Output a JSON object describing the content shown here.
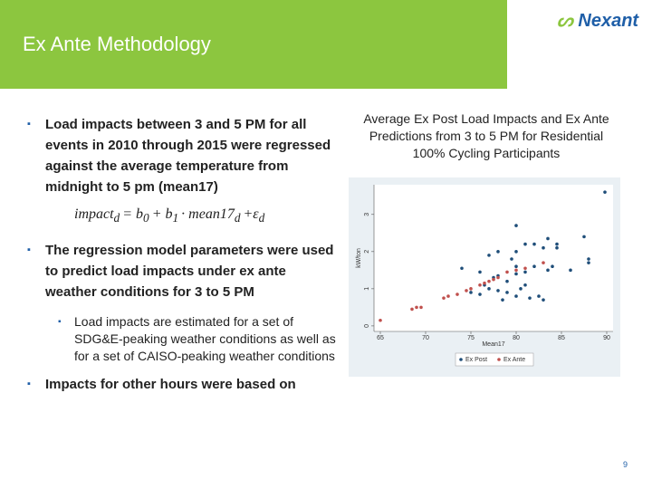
{
  "header": {
    "title": "Ex Ante Methodology",
    "logo": "Nexant"
  },
  "bullets": [
    {
      "text": "Load impacts between 3 and 5 PM for all events in 2010 through 2015 were regressed against the average temperature from midnight to 5 pm (mean17)"
    },
    {
      "text": "The regression model parameters were used to predict load impacts under ex ante weather conditions for 3 to 5 PM",
      "sub": [
        "Load impacts are estimated for a set of SDG&E-peaking weather conditions as well as for a set of CAISO-peaking weather conditions"
      ]
    },
    {
      "text": "Impacts for other hours were based on"
    }
  ],
  "formula": [
    {
      "text": "impact",
      "sub": "d"
    },
    {
      "text": "= b",
      "sub": "0"
    },
    {
      "text": "+ b",
      "sub": "1"
    },
    {
      "text": "· mean17",
      "sub": "d"
    },
    {
      "text": "+ε",
      "sub": "d"
    }
  ],
  "page_number": "9",
  "chart_data": {
    "type": "scatter",
    "title": "Average Ex Post Load Impacts and Ex Ante Predictions from 3 to 5 PM for Residential 100% Cycling Participants",
    "x_label": "Mean17",
    "y_label": "kW/ton",
    "xlim": [
      64.5,
      90.5
    ],
    "ylim": [
      -0.1,
      3.75
    ],
    "xticks": [
      65,
      70,
      75,
      80,
      85,
      90
    ],
    "yticks": [
      0,
      1,
      2,
      3
    ],
    "grid": false,
    "series": [
      {
        "name": "Ex Post",
        "color": "#1f4e79",
        "x": [
          89.8,
          80,
          83.5,
          84.5,
          84.5,
          87.5,
          88,
          88,
          86,
          81,
          82,
          83,
          80,
          78,
          79.5,
          77,
          80,
          82,
          83.5,
          84,
          74,
          76,
          78,
          77.5,
          79,
          76.5,
          77,
          78,
          79,
          80,
          80.5,
          81,
          81.5,
          82.5,
          83,
          78.5,
          75,
          76,
          80,
          81
        ],
        "values": [
          3.6,
          2.7,
          2.35,
          2.2,
          2.1,
          2.4,
          1.7,
          1.8,
          1.5,
          2.2,
          2.2,
          2.1,
          2.0,
          2.0,
          1.8,
          1.9,
          1.6,
          1.6,
          1.5,
          1.6,
          1.55,
          1.45,
          1.35,
          1.3,
          1.2,
          1.1,
          1.0,
          0.95,
          0.9,
          0.8,
          1.0,
          1.1,
          0.75,
          0.8,
          0.7,
          0.7,
          0.9,
          0.85,
          1.4,
          1.45
        ]
      },
      {
        "name": "Ex Ante",
        "color": "#c0504d",
        "x": [
          65,
          68.5,
          69,
          69.5,
          72,
          72.5,
          73.5,
          74.5,
          75,
          76,
          76.5,
          77,
          77.5,
          78,
          79,
          80,
          81,
          83
        ],
        "values": [
          0.15,
          0.45,
          0.5,
          0.5,
          0.75,
          0.8,
          0.85,
          0.95,
          1.0,
          1.1,
          1.15,
          1.2,
          1.25,
          1.3,
          1.45,
          1.5,
          1.55,
          1.7
        ]
      }
    ]
  }
}
